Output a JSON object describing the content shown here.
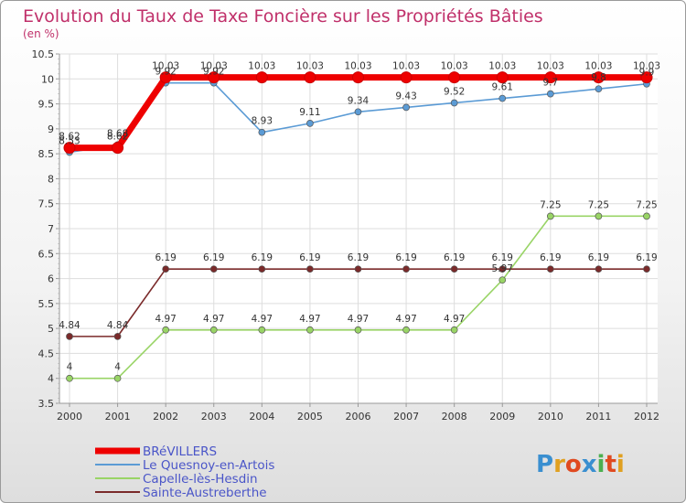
{
  "title": "Evolution du Taux de Taxe Foncière sur les Propriétés Bâties",
  "subtitle": "(en %)",
  "logo": {
    "chars": [
      "P",
      "r",
      "o",
      "x",
      "i",
      "t",
      "i"
    ],
    "colors": [
      "#3a8fd0",
      "#e0a020",
      "#e04a20",
      "#3a8fd0",
      "#4caf50",
      "#e04a20",
      "#e0a020"
    ]
  },
  "chart_data": {
    "type": "line",
    "title": "Evolution du Taux de Taxe Foncière sur les Propriétés Bâties",
    "ylabel": "(en %)",
    "xlabel": "",
    "ylim": [
      3.5,
      10.5
    ],
    "yticks": [
      "3.5",
      "4",
      "4.5",
      "5",
      "5.5",
      "6",
      "6.5",
      "7",
      "7.5",
      "8",
      "8.5",
      "9",
      "9.5",
      "10",
      "10.5"
    ],
    "categories": [
      "2000",
      "2001",
      "2002",
      "2003",
      "2004",
      "2005",
      "2006",
      "2007",
      "2008",
      "2009",
      "2010",
      "2011",
      "2012"
    ],
    "legend_position": "bottom-left",
    "series": [
      {
        "name": "BRéVILLERS",
        "color": "#ee0000",
        "values": [
          8.62,
          8.62,
          10.03,
          10.03,
          10.03,
          10.03,
          10.03,
          10.03,
          10.03,
          10.03,
          10.03,
          10.03,
          10.03
        ],
        "labels": [
          "8.62",
          "8.62",
          "10.03",
          "10.03",
          "10.03",
          "10.03",
          "10.03",
          "10.03",
          "10.03",
          "10.03",
          "10.03",
          "10.03",
          "10.03"
        ]
      },
      {
        "name": "Le Quesnoy-en-Artois",
        "color": "#5b9bd5",
        "values": [
          8.53,
          8.68,
          9.92,
          9.92,
          8.93,
          9.11,
          9.34,
          9.43,
          9.52,
          9.61,
          9.7,
          9.8,
          9.9
        ],
        "labels": [
          "8.53",
          "8.68",
          "9.92",
          "9.92",
          "8.93",
          "9.11",
          "9.34",
          "9.43",
          "9.52",
          "9.61",
          "9.7",
          "9.8",
          "9.9"
        ]
      },
      {
        "name": "Capelle-lès-Hesdin",
        "color": "#99d466",
        "values": [
          4,
          4,
          4.97,
          4.97,
          4.97,
          4.97,
          4.97,
          4.97,
          4.97,
          5.97,
          7.25,
          7.25,
          7.25
        ],
        "labels": [
          "4",
          "4",
          "4.97",
          "4.97",
          "4.97",
          "4.97",
          "4.97",
          "4.97",
          "4.97",
          "5.97",
          "7.25",
          "7.25",
          "7.25"
        ]
      },
      {
        "name": "Sainte-Austreberthe",
        "color": "#7a2a2a",
        "values": [
          4.84,
          4.84,
          6.19,
          6.19,
          6.19,
          6.19,
          6.19,
          6.19,
          6.19,
          6.19,
          6.19,
          6.19,
          6.19
        ],
        "labels": [
          "4.84",
          "4.84",
          "6.19",
          "6.19",
          "6.19",
          "6.19",
          "6.19",
          "6.19",
          "6.19",
          "6.19",
          "6.19",
          "6.19",
          "6.19"
        ]
      }
    ]
  }
}
